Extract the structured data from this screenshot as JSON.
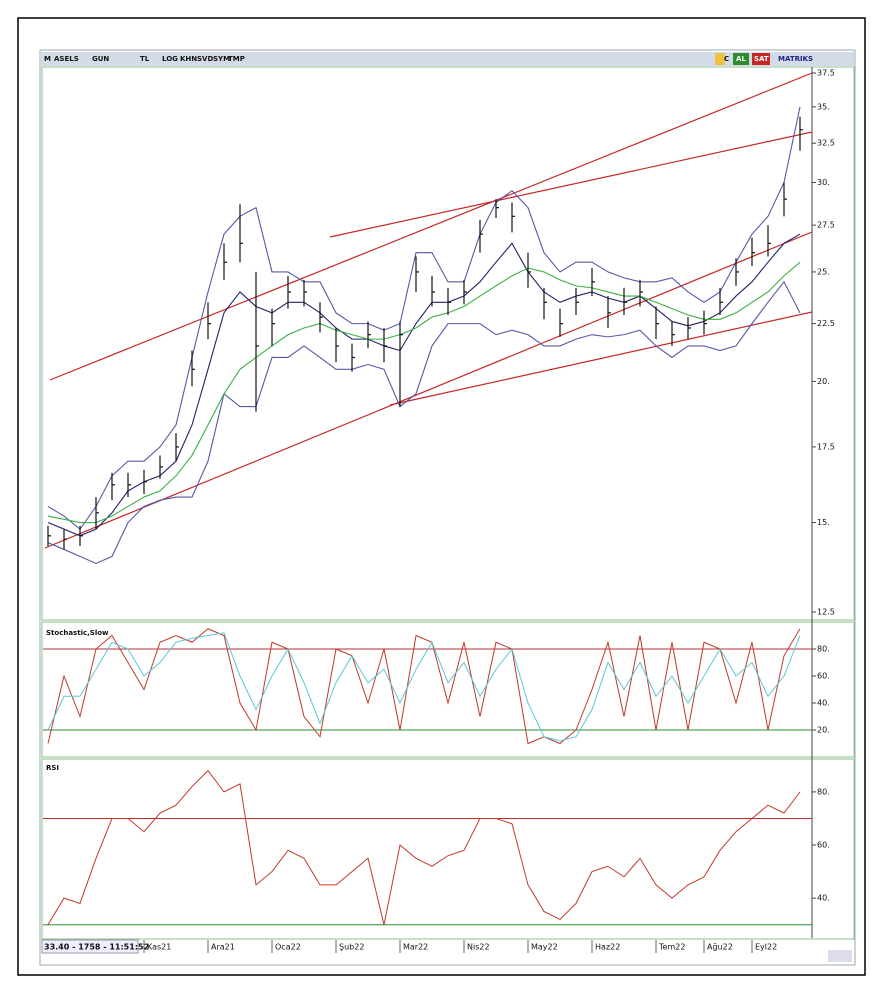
{
  "toolbar": {
    "symbol": "ASELS",
    "buttons": [
      "GUN",
      "TL",
      "LOG",
      "KHN",
      "SVD",
      "SYM",
      "TMP"
    ],
    "right": [
      "C",
      "AL",
      "SAT",
      "MATRIKS"
    ]
  },
  "status": "33.40 - 1758 - 11:51:52",
  "chart_data": [
    {
      "type": "ohlc",
      "log_scale": true,
      "ylim": [
        12.5,
        37.5
      ],
      "yticks": [
        {
          "value": 12.5,
          "label": "12.5"
        },
        {
          "value": 15,
          "label": "15."
        },
        {
          "value": 17.5,
          "label": "17.5"
        },
        {
          "value": 20,
          "label": "20."
        },
        {
          "value": 22.5,
          "label": "22.5"
        },
        {
          "value": 25,
          "label": "25."
        },
        {
          "value": 27.5,
          "label": "27.5"
        },
        {
          "value": 30,
          "label": "30."
        },
        {
          "value": 32.5,
          "label": "32.5"
        },
        {
          "value": 35,
          "label": "35."
        },
        {
          "value": 37.5,
          "label": "37.5"
        }
      ],
      "categories": [
        null,
        null,
        null,
        null,
        null,
        null,
        "Kas21",
        null,
        null,
        null,
        "Ara21",
        null,
        null,
        null,
        "Oca22",
        null,
        null,
        null,
        "Şub22",
        null,
        null,
        null,
        "Mar22",
        null,
        null,
        null,
        "Nis22",
        null,
        null,
        null,
        "May22",
        null,
        null,
        null,
        "Haz22",
        null,
        null,
        null,
        "Tem22",
        null,
        null,
        "Ağu22",
        null,
        null,
        "Eyl22",
        null,
        null,
        null
      ],
      "color": "#111111",
      "high": [
        14.9,
        14.8,
        14.9,
        15.8,
        16.6,
        16.6,
        16.7,
        17.2,
        18.0,
        21.3,
        23.5,
        26.5,
        28.7,
        25.0,
        23.2,
        24.8,
        24.6,
        23.5,
        22.3,
        21.6,
        22.6,
        22.3,
        22.6,
        25.8,
        24.8,
        24.2,
        24.6,
        27.8,
        29.0,
        28.8,
        26.0,
        24.2,
        23.2,
        24.2,
        25.2,
        23.8,
        24.2,
        24.6,
        23.3,
        22.6,
        22.8,
        23.1,
        24.2,
        25.7,
        26.8,
        27.5,
        30.0,
        34.3
      ],
      "low": [
        14.3,
        14.2,
        14.3,
        14.8,
        15.7,
        15.8,
        15.9,
        16.4,
        17.0,
        19.8,
        21.8,
        24.6,
        25.5,
        18.8,
        21.5,
        23.2,
        23.3,
        22.1,
        20.8,
        20.4,
        21.4,
        20.8,
        19.0,
        24.0,
        23.3,
        22.9,
        23.4,
        26.0,
        27.9,
        27.1,
        24.2,
        22.7,
        21.9,
        22.9,
        23.8,
        22.3,
        22.9,
        23.3,
        21.8,
        21.5,
        21.8,
        22.0,
        22.9,
        24.3,
        25.3,
        25.8,
        28.0,
        32.0
      ],
      "close": [
        14.6,
        14.5,
        14.6,
        15.3,
        16.2,
        16.2,
        16.3,
        16.8,
        17.5,
        20.5,
        22.5,
        25.5,
        26.5,
        21.5,
        22.5,
        24.0,
        24.0,
        22.8,
        21.5,
        21.0,
        22.0,
        21.5,
        22.0,
        25.0,
        24.0,
        23.5,
        24.0,
        27.0,
        28.5,
        28.0,
        25.0,
        23.5,
        22.5,
        23.5,
        24.5,
        23.0,
        23.5,
        24.0,
        22.5,
        22.0,
        22.3,
        22.5,
        23.5,
        25.0,
        26.0,
        26.5,
        29.0,
        33.4
      ],
      "overlays": [
        {
          "color": "#5558a8",
          "values": [
            15.5,
            15.2,
            14.8,
            15.5,
            16.5,
            17,
            17,
            17.5,
            18.3,
            21,
            24,
            27,
            28,
            28.5,
            25,
            25,
            24.5,
            24.5,
            23,
            22.5,
            22.5,
            22.2,
            22.5,
            26,
            26,
            24.5,
            24.5,
            27,
            28.8,
            29.5,
            28.5,
            26,
            25,
            25.5,
            25.5,
            25,
            24.7,
            24.5,
            24.5,
            24.7,
            24,
            23.5,
            24,
            25.5,
            27,
            28,
            30,
            35
          ]
        },
        {
          "color": "#5558a8",
          "values": [
            14.4,
            14.2,
            14.0,
            13.8,
            14.0,
            15,
            15.5,
            15.7,
            15.8,
            15.8,
            17,
            19.5,
            19,
            19,
            21,
            21,
            21.5,
            21,
            20.5,
            20.5,
            20.7,
            20.5,
            19,
            19.5,
            21.5,
            22.5,
            22.5,
            22.5,
            22.0,
            22.2,
            22.0,
            21.5,
            21.5,
            21.8,
            22.0,
            21.9,
            22.0,
            22.2,
            21.5,
            21.0,
            21.5,
            21.5,
            21.3,
            21.5,
            22.5,
            23.5,
            24.5,
            23.0
          ]
        },
        {
          "color": "#1e2266",
          "values": [
            15,
            14.8,
            14.6,
            14.8,
            15.3,
            16.0,
            16.3,
            16.5,
            17.0,
            18.3,
            20.5,
            23.0,
            24.0,
            23.3,
            23.0,
            23.5,
            23.5,
            23.0,
            22.3,
            21.8,
            21.8,
            21.5,
            21.3,
            22.5,
            23.5,
            23.5,
            23.8,
            24.5,
            25.5,
            26.5,
            25.0,
            24.0,
            23.5,
            23.8,
            24.0,
            23.7,
            23.5,
            23.8,
            23.2,
            22.6,
            22.4,
            22.6,
            23.0,
            23.8,
            24.5,
            25.5,
            26.5,
            27.0
          ]
        },
        {
          "color": "#3cb043",
          "values": [
            15.2,
            15.1,
            15.0,
            15.0,
            15.2,
            15.5,
            15.8,
            16.0,
            16.5,
            17.2,
            18.3,
            19.5,
            20.5,
            21.0,
            21.5,
            22.0,
            22.3,
            22.5,
            22.2,
            22.0,
            21.8,
            21.8,
            22.0,
            22.3,
            22.8,
            23.0,
            23.3,
            23.8,
            24.3,
            24.8,
            25.2,
            25.0,
            24.6,
            24.3,
            24.2,
            24.0,
            23.8,
            23.8,
            23.5,
            23.2,
            22.9,
            22.7,
            22.7,
            23.0,
            23.5,
            24.0,
            24.8,
            25.5
          ]
        }
      ]
    },
    {
      "type": "line",
      "title": "Stochastic,Slow",
      "ylim": [
        0,
        100
      ],
      "yticks": [
        {
          "value": 20,
          "label": "20."
        },
        {
          "value": 40,
          "label": "40."
        },
        {
          "value": 60,
          "label": "60."
        },
        {
          "value": 80,
          "label": "80."
        }
      ],
      "hlines": [
        {
          "value": 80,
          "color": "#b03030"
        },
        {
          "value": 20,
          "color": "#2e8b2e"
        }
      ],
      "series": [
        {
          "color": "#c0392b",
          "values": [
            10,
            60,
            30,
            80,
            90,
            70,
            50,
            85,
            90,
            85,
            95,
            90,
            40,
            20,
            85,
            80,
            30,
            15,
            80,
            75,
            40,
            80,
            20,
            90,
            85,
            40,
            85,
            30,
            85,
            80,
            10,
            15,
            10,
            20,
            50,
            85,
            30,
            90,
            20,
            85,
            20,
            85,
            80,
            40,
            85,
            20,
            75,
            95
          ]
        },
        {
          "color": "#5bc8d8",
          "values": [
            20,
            45,
            45,
            65,
            85,
            80,
            60,
            70,
            85,
            88,
            90,
            92,
            60,
            35,
            60,
            80,
            55,
            25,
            55,
            75,
            55,
            65,
            40,
            65,
            85,
            55,
            70,
            45,
            65,
            80,
            40,
            15,
            12,
            15,
            35,
            70,
            50,
            70,
            45,
            60,
            40,
            60,
            80,
            60,
            70,
            45,
            60,
            90
          ]
        }
      ]
    },
    {
      "type": "line",
      "title": "RSI",
      "ylim": [
        25,
        92
      ],
      "yticks": [
        {
          "value": 40,
          "label": "40."
        },
        {
          "value": 60,
          "label": "60."
        },
        {
          "value": 80,
          "label": "80."
        }
      ],
      "hlines": [
        {
          "value": 70,
          "color": "#b03030"
        },
        {
          "value": 30,
          "color": "#2e8b2e"
        }
      ],
      "series": [
        {
          "color": "#c0392b",
          "values": [
            30,
            40,
            38,
            55,
            70,
            70,
            65,
            72,
            75,
            82,
            88,
            80,
            83,
            45,
            50,
            58,
            55,
            45,
            45,
            50,
            55,
            30,
            60,
            55,
            52,
            56,
            58,
            70,
            70,
            68,
            45,
            35,
            32,
            38,
            50,
            52,
            48,
            55,
            45,
            40,
            45,
            48,
            58,
            65,
            70,
            75,
            72,
            80
          ]
        }
      ]
    }
  ]
}
